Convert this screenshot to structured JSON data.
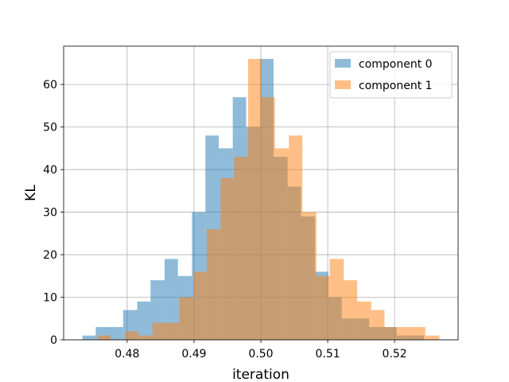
{
  "chart_data": {
    "type": "histogram",
    "xlabel": "iteration",
    "ylabel": "KL",
    "xlim": [
      0.4705,
      0.5295
    ],
    "ylim": [
      0,
      69
    ],
    "x_ticks": [
      0.48,
      0.49,
      0.5,
      0.51,
      0.52
    ],
    "x_tick_labels": [
      "0.48",
      "0.49",
      "0.50",
      "0.51",
      "0.52"
    ],
    "y_ticks": [
      0,
      10,
      20,
      30,
      40,
      50,
      60
    ],
    "y_tick_labels": [
      "0",
      "10",
      "20",
      "30",
      "40",
      "50",
      "60"
    ],
    "grid": true,
    "legend_position": "top-right",
    "series": [
      {
        "name": "component 0",
        "color": "#1f77b4",
        "alpha": 0.5,
        "bin_edges": [
          0.4733,
          0.4753,
          0.4774,
          0.4794,
          0.4815,
          0.4835,
          0.4856,
          0.4876,
          0.4897,
          0.4917,
          0.4937,
          0.4958,
          0.4978,
          0.4999,
          0.5019,
          0.504,
          0.506,
          0.5081,
          0.5101,
          0.5121,
          0.5142,
          0.5162,
          0.5183,
          0.5203,
          0.5224,
          0.5244
        ],
        "counts": [
          1,
          3,
          3,
          7,
          9,
          14,
          19,
          15,
          30,
          48,
          45,
          57,
          50,
          66,
          43,
          36,
          29,
          16,
          10,
          5,
          5,
          3,
          3,
          1,
          1
        ]
      },
      {
        "name": "component 1",
        "color": "#ff7f0e",
        "alpha": 0.5,
        "bin_edges": [
          0.4756,
          0.4776,
          0.4797,
          0.4817,
          0.4838,
          0.4858,
          0.4878,
          0.4899,
          0.4919,
          0.494,
          0.496,
          0.4981,
          0.5001,
          0.5021,
          0.5042,
          0.5062,
          0.5083,
          0.5103,
          0.5124,
          0.5144,
          0.5165,
          0.5185,
          0.5205,
          0.5226,
          0.5246,
          0.5267
        ],
        "counts": [
          1,
          0,
          2,
          1,
          4,
          4,
          10,
          16,
          26,
          38,
          43,
          66,
          57,
          45,
          48,
          30,
          15,
          19,
          14,
          9,
          7,
          3,
          3,
          3,
          1
        ]
      }
    ]
  }
}
